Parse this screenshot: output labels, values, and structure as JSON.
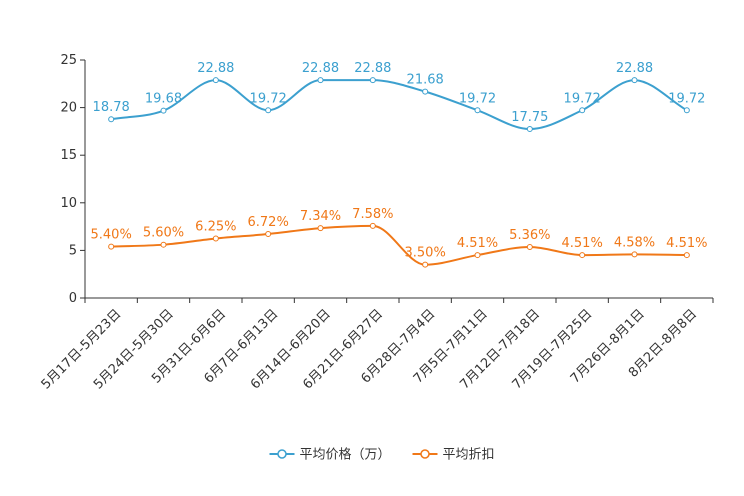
{
  "chart_data": {
    "type": "line",
    "title": "",
    "xlabel": "",
    "ylabel": "",
    "ylim": [
      0,
      25
    ],
    "yticks": [
      0,
      5,
      10,
      15,
      20,
      25
    ],
    "grid": false,
    "legend_position": "bottom-center",
    "categories": [
      "5月17日-5月23日",
      "5月24日-5月30日",
      "5月31日-6月6日",
      "6月7日-6月13日",
      "6月14日-6月20日",
      "6月21日-6月27日",
      "6月28日-7月4日",
      "7月5日-7月11日",
      "7月12日-7月18日",
      "7月19日-7月25日",
      "7月26日-8月1日",
      "8月2日-8月8日"
    ],
    "series": [
      {
        "name": "平均价格（万）",
        "color": "#3ca0cf",
        "values": [
          18.78,
          19.68,
          22.88,
          19.72,
          22.88,
          22.88,
          21.68,
          19.72,
          17.75,
          19.72,
          22.88,
          19.72
        ],
        "labels": [
          "18.78",
          "19.68",
          "22.88",
          "19.72",
          "22.88",
          "22.88",
          "21.68",
          "19.72",
          "17.75",
          "19.72",
          "22.88",
          "19.72"
        ]
      },
      {
        "name": "平均折扣",
        "color": "#f07818",
        "values": [
          5.4,
          5.6,
          6.25,
          6.72,
          7.34,
          7.58,
          3.5,
          4.51,
          5.36,
          4.51,
          4.58,
          4.51
        ],
        "labels": [
          "5.40%",
          "5.60%",
          "6.25%",
          "6.72%",
          "7.34%",
          "7.58%",
          "3.50%",
          "4.51%",
          "5.36%",
          "4.51%",
          "4.58%",
          "4.51%"
        ]
      }
    ]
  }
}
